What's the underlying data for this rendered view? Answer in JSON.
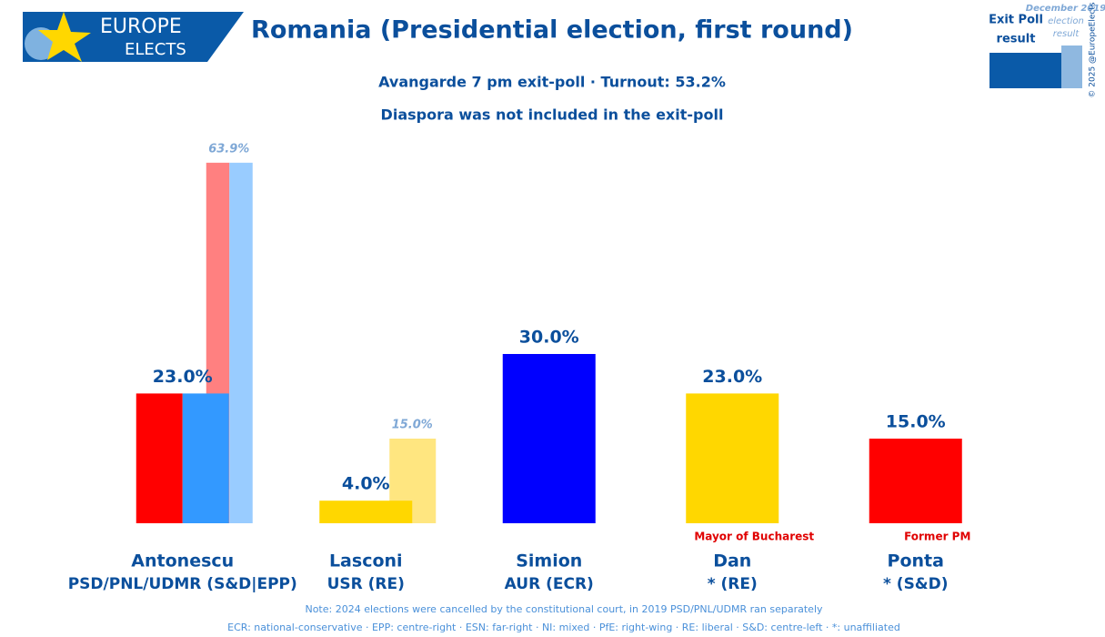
{
  "header": {
    "logo_top": "EUROPE",
    "logo_bottom": "ELECTS"
  },
  "chart_data": {
    "type": "bar",
    "title": "Romania (Presidential election, first round)",
    "subtitle": [
      "Avangarde 7 pm exit-poll · Turnout: 53.2%",
      "Diaspora was not included in the exit-poll"
    ],
    "categories": [
      "Antonescu",
      "Lasconi",
      "Simion",
      "Dan",
      "Ponta"
    ],
    "parties": [
      "PSD/PNL/UDMR (S&D|EPP)",
      "USR (RE)",
      "AUR (ECR)",
      "* (RE)",
      "* (S&D)"
    ],
    "category_notes": [
      null,
      null,
      null,
      "Mayor of Bucharest",
      "Former PM"
    ],
    "series": [
      {
        "name": [
          "Exit Poll",
          "result"
        ],
        "color": "#0a5aa8",
        "values": [
          23.0,
          4.0,
          30.0,
          23.0,
          15.0
        ],
        "value_labels": [
          "23.0%",
          "4.0%",
          "30.0%",
          "23.0%",
          "15.0%"
        ],
        "colors": [
          [
            "#ff0000",
            "#3399ff"
          ],
          [
            "#ffd700"
          ],
          [
            "#0000ff"
          ],
          [
            "#ffd700"
          ],
          [
            "#ff0000"
          ]
        ]
      },
      {
        "name": [
          "December 2019",
          "election",
          "result"
        ],
        "color": "#8fb8e0",
        "values": [
          63.9,
          15.0,
          null,
          null,
          null
        ],
        "value_labels": [
          "63.9%",
          "15.0%",
          null,
          null,
          null
        ],
        "colors": [
          [
            "#ff8080",
            "#99ccff"
          ],
          [
            "#ffe680"
          ],
          null,
          null,
          null
        ]
      }
    ],
    "ylim": [
      0,
      70
    ]
  },
  "copyright": "© 2025 @EuropeElects",
  "footer": [
    "Note: 2024 elections were cancelled by the constitutional court, in 2019 PSD/PNL/UDMR ran separately",
    "ECR: national-conservative · EPP: centre-right · ESN: far-right · NI: mixed · PfE: right-wing · RE: liberal · S&D: centre-left · *: unaffiliated"
  ]
}
